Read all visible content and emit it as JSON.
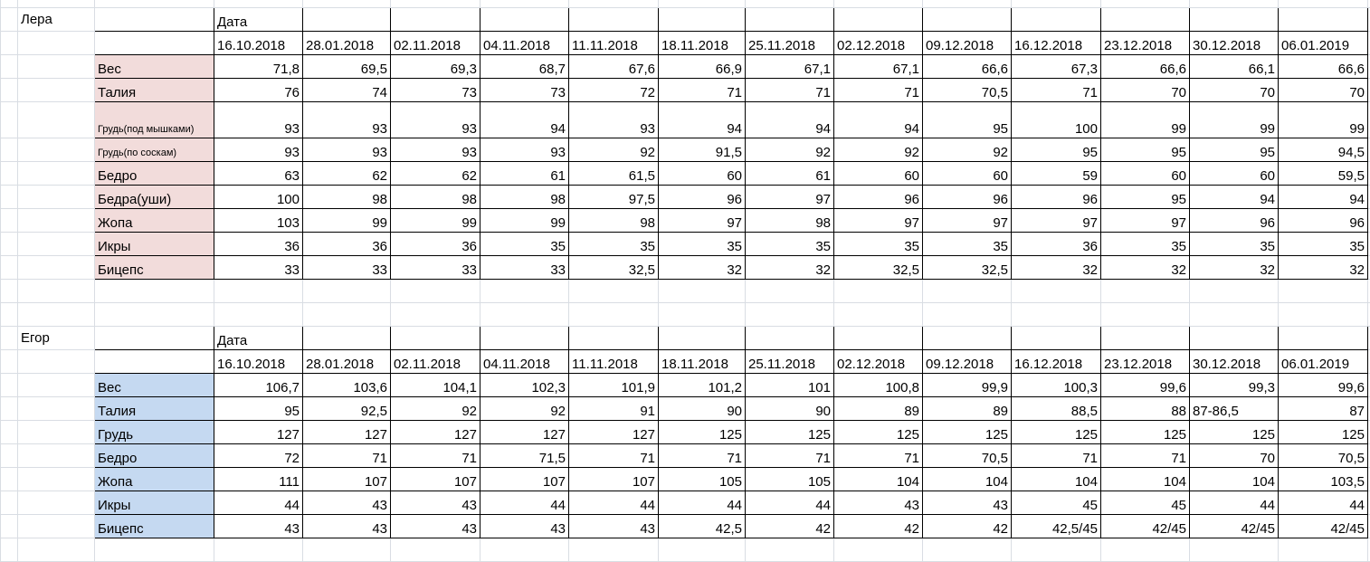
{
  "tables": [
    {
      "owner": "Лера",
      "date_header": "Дата",
      "label_color": "#f2dcdb",
      "dates": [
        "16.10.2018",
        "28.01.2018",
        "02.11.2018",
        "04.11.2018",
        "11.11.2018",
        "18.11.2018",
        "25.11.2018",
        "02.12.2018",
        "09.12.2018",
        "16.12.2018",
        "23.12.2018",
        "30.12.2018",
        "06.01.2019"
      ],
      "rows": [
        {
          "label": "Вес",
          "values": [
            "71,8",
            "69,5",
            "69,3",
            "68,7",
            "67,6",
            "66,9",
            "67,1",
            "67,1",
            "66,6",
            "67,3",
            "66,6",
            "66,1",
            "66,6"
          ]
        },
        {
          "label": "Талия",
          "values": [
            "76",
            "74",
            "73",
            "73",
            "72",
            "71",
            "71",
            "71",
            "70,5",
            "71",
            "70",
            "70",
            "70"
          ]
        },
        {
          "label": "Грудь(под мышками)",
          "values": [
            "93",
            "93",
            "93",
            "94",
            "93",
            "94",
            "94",
            "94",
            "95",
            "100",
            "99",
            "99",
            "99"
          ]
        },
        {
          "label": "Грудь(по соскам)",
          "values": [
            "93",
            "93",
            "93",
            "93",
            "92",
            "91,5",
            "92",
            "92",
            "92",
            "95",
            "95",
            "95",
            "94,5"
          ]
        },
        {
          "label": "Бедро",
          "values": [
            "63",
            "62",
            "62",
            "61",
            "61,5",
            "60",
            "61",
            "60",
            "60",
            "59",
            "60",
            "60",
            "59,5"
          ]
        },
        {
          "label": "Бедра(уши)",
          "values": [
            "100",
            "98",
            "98",
            "98",
            "97,5",
            "96",
            "97",
            "96",
            "96",
            "96",
            "95",
            "94",
            "94"
          ]
        },
        {
          "label": "Жопа",
          "values": [
            "103",
            "99",
            "99",
            "99",
            "98",
            "97",
            "98",
            "97",
            "97",
            "97",
            "97",
            "96",
            "96"
          ]
        },
        {
          "label": "Икры",
          "values": [
            "36",
            "36",
            "36",
            "35",
            "35",
            "35",
            "35",
            "35",
            "35",
            "36",
            "35",
            "35",
            "35"
          ]
        },
        {
          "label": "Бицепс",
          "values": [
            "33",
            "33",
            "33",
            "33",
            "32,5",
            "32",
            "32",
            "32,5",
            "32,5",
            "32",
            "32",
            "32",
            "32"
          ]
        }
      ]
    },
    {
      "owner": "Егор",
      "date_header": "Дата",
      "label_color": "#c5d9f1",
      "dates": [
        "16.10.2018",
        "28.01.2018",
        "02.11.2018",
        "04.11.2018",
        "11.11.2018",
        "18.11.2018",
        "25.11.2018",
        "02.12.2018",
        "09.12.2018",
        "16.12.2018",
        "23.12.2018",
        "30.12.2018",
        "06.01.2019"
      ],
      "rows": [
        {
          "label": "Вес",
          "values": [
            "106,7",
            "103,6",
            "104,1",
            "102,3",
            "101,9",
            "101,2",
            "101",
            "100,8",
            "99,9",
            "100,3",
            "99,6",
            "99,3",
            "99,6"
          ]
        },
        {
          "label": "Талия",
          "values": [
            "95",
            "92,5",
            "92",
            "92",
            "91",
            "90",
            "90",
            "89",
            "89",
            "88,5",
            "88",
            "87-86,5",
            "87"
          ]
        },
        {
          "label": "Грудь",
          "values": [
            "127",
            "127",
            "127",
            "127",
            "127",
            "125",
            "125",
            "125",
            "125",
            "125",
            "125",
            "125",
            "125"
          ]
        },
        {
          "label": "Бедро",
          "values": [
            "72",
            "71",
            "71",
            "71,5",
            "71",
            "71",
            "71",
            "71",
            "70,5",
            "71",
            "71",
            "70",
            "70,5"
          ]
        },
        {
          "label": "Жопа",
          "values": [
            "111",
            "107",
            "107",
            "107",
            "107",
            "105",
            "105",
            "104",
            "104",
            "104",
            "104",
            "104",
            "103,5"
          ]
        },
        {
          "label": "Икры",
          "values": [
            "44",
            "43",
            "43",
            "44",
            "44",
            "44",
            "44",
            "43",
            "43",
            "45",
            "45",
            "44",
            "44"
          ]
        },
        {
          "label": "Бицепс",
          "values": [
            "43",
            "43",
            "43",
            "43",
            "43",
            "42,5",
            "42",
            "42",
            "42",
            "42,5/45",
            "42/45",
            "42/45",
            "42/45"
          ]
        }
      ]
    }
  ]
}
